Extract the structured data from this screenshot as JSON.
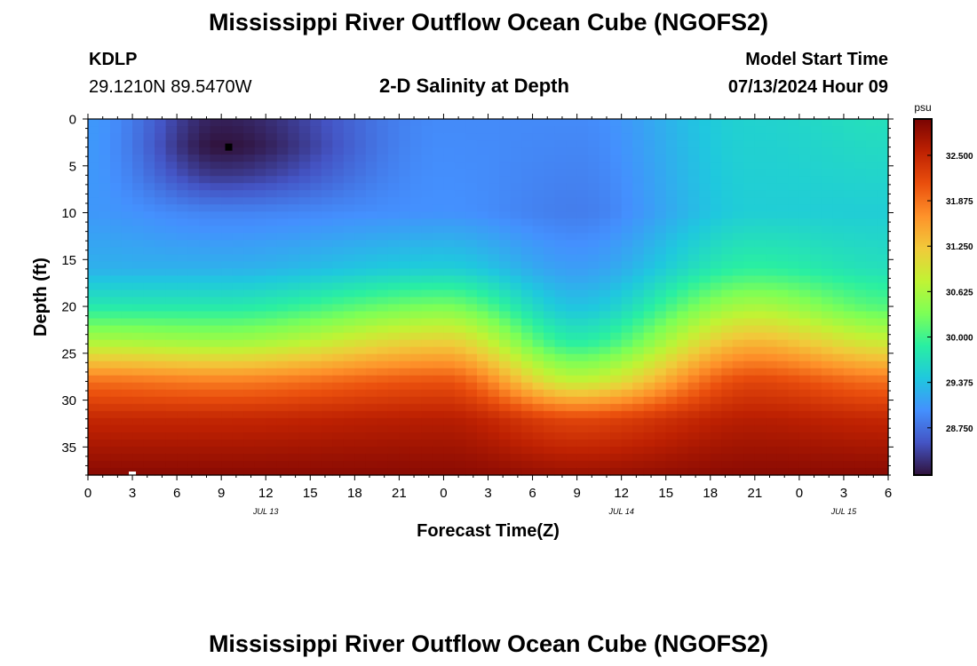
{
  "header": {
    "title": "Mississippi River Outflow Ocean Cube (NGOFS2)",
    "station": "KDLP",
    "coords": "29.1210N  89.5470W",
    "subtitle": "2-D Salinity at Depth",
    "model_label": "Model Start Time",
    "model_time": "07/13/2024 Hour 09"
  },
  "footer": {
    "title": "Mississippi River Outflow Ocean Cube (NGOFS2)"
  },
  "chart_data": {
    "type": "heatmap",
    "title": "2-D Salinity at Depth",
    "xlabel": "Forecast Time(Z)",
    "ylabel": "Depth (ft)",
    "x_tick_labels": [
      "0",
      "3",
      "6",
      "9",
      "12",
      "15",
      "18",
      "21",
      "0",
      "3",
      "6",
      "9",
      "12",
      "15",
      "18",
      "21",
      "0",
      "3",
      "6"
    ],
    "x_range_hours": [
      0,
      54
    ],
    "date_labels": [
      {
        "text": "JUL 13",
        "hour": 12
      },
      {
        "text": "JUL 14",
        "hour": 36
      },
      {
        "text": "JUL 15",
        "hour": 51
      }
    ],
    "y_tick_labels": [
      "0",
      "5",
      "10",
      "15",
      "20",
      "25",
      "30",
      "35"
    ],
    "y_range": [
      0,
      38
    ],
    "y_inverted": true,
    "colorbar": {
      "unit": "psu",
      "range": [
        28.1,
        33.0
      ],
      "tick_labels": [
        "32.500",
        "31.875",
        "31.250",
        "30.625",
        "30.000",
        "29.375",
        "28.750"
      ],
      "colors": [
        "#30123b",
        "#4454c4",
        "#4490fe",
        "#1fc8de",
        "#29efa2",
        "#7dff56",
        "#c1f334",
        "#f1ca3a",
        "#fe922a",
        "#ea4f0d",
        "#be2102",
        "#7a0403"
      ]
    },
    "sampled_profiles": [
      {
        "hour": 0,
        "depths": [
          0,
          10,
          16,
          20,
          24,
          28,
          32,
          38
        ],
        "psu": [
          29.05,
          29.05,
          29.25,
          29.8,
          30.7,
          31.9,
          32.5,
          32.9
        ]
      },
      {
        "hour": 9,
        "depths": [
          0,
          3,
          6,
          10,
          16,
          20,
          24,
          28,
          32,
          38
        ],
        "psu": [
          28.2,
          28.1,
          28.35,
          28.9,
          29.25,
          29.8,
          30.6,
          31.8,
          32.5,
          32.9
        ]
      },
      {
        "hour": 24,
        "depths": [
          0,
          10,
          16,
          20,
          24,
          28,
          32,
          38
        ],
        "psu": [
          28.95,
          29.0,
          29.5,
          30.3,
          31.2,
          32.1,
          32.6,
          32.9
        ]
      },
      {
        "hour": 33,
        "depths": [
          0,
          10,
          16,
          20,
          24,
          28,
          32,
          38
        ],
        "psu": [
          28.95,
          28.85,
          29.1,
          29.4,
          29.9,
          30.8,
          32.2,
          32.8
        ]
      },
      {
        "hour": 45,
        "depths": [
          0,
          10,
          16,
          20,
          24,
          28,
          32,
          38
        ],
        "psu": [
          29.55,
          29.5,
          29.9,
          30.6,
          31.4,
          32.2,
          32.6,
          32.9
        ]
      },
      {
        "hour": 54,
        "depths": [
          0,
          10,
          16,
          20,
          24,
          28,
          32,
          38
        ],
        "psu": [
          29.7,
          29.5,
          29.7,
          30.1,
          30.9,
          31.9,
          32.5,
          32.9
        ]
      }
    ],
    "markers": [
      {
        "hour": 9.5,
        "depth": 3,
        "color": "#000000"
      },
      {
        "hour": 3,
        "depth": 38,
        "color": "#ffffff"
      }
    ]
  }
}
